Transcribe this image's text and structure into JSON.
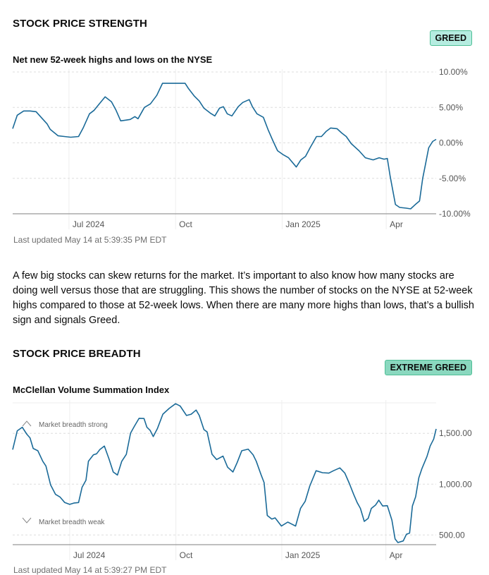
{
  "sections": [
    {
      "title": "STOCK PRICE STRENGTH",
      "badge": "GREED",
      "badge_color": "#b5ece0",
      "subtitle": "Net new 52-week highs and lows on the NYSE",
      "last_updated": "Last updated May 14 at 5:39:35 PM EDT"
    },
    {
      "title": "STOCK PRICE BREADTH",
      "badge": "EXTREME GREED",
      "badge_color": "#8ad8bf",
      "subtitle": "McClellan Volume Summation Index",
      "last_updated": "Last updated May 14 at 5:39:27 PM EDT",
      "annotations": {
        "strong": "Market breadth strong",
        "weak": "Market breadth weak"
      }
    }
  ],
  "description": "A few big stocks can skew returns for the market. It’s important to also know how many stocks are doing well versus those that are struggling. This shows the number of stocks on the NYSE at 52-week highs compared to those at 52-week lows. When there are many more highs than lows, that’s a bullish sign and signals Greed.",
  "chart_data": [
    {
      "type": "line",
      "title": "Net new 52-week highs and lows on the NYSE",
      "x_unit": "months since mid-May 2024",
      "xlim": [
        0,
        11.96
      ],
      "ylim": [
        -10,
        10
      ],
      "y_ticks": [
        10,
        5,
        0,
        -5,
        -10
      ],
      "y_tick_labels": [
        "10.00%",
        "5.00%",
        "0.00%",
        "-5.00%",
        "-10.00%"
      ],
      "x_ticks": [
        1.59,
        4.6,
        7.61,
        10.55
      ],
      "x_tick_labels": [
        "Jul 2024",
        "Oct",
        "Jan 2025",
        "Apr"
      ],
      "line_color": "#1a6a98",
      "points": [
        [
          0,
          2.0
        ],
        [
          0.13,
          3.9
        ],
        [
          0.31,
          4.5
        ],
        [
          0.49,
          4.5
        ],
        [
          0.66,
          4.4
        ],
        [
          0.84,
          3.4
        ],
        [
          0.97,
          2.7
        ],
        [
          1.06,
          1.9
        ],
        [
          1.28,
          1.0
        ],
        [
          1.46,
          0.9
        ],
        [
          1.64,
          0.8
        ],
        [
          1.86,
          0.9
        ],
        [
          1.99,
          2.1
        ],
        [
          2.17,
          4.1
        ],
        [
          2.3,
          4.6
        ],
        [
          2.43,
          5.4
        ],
        [
          2.61,
          6.5
        ],
        [
          2.79,
          5.8
        ],
        [
          2.92,
          4.6
        ],
        [
          3.05,
          3.1
        ],
        [
          3.19,
          3.2
        ],
        [
          3.32,
          3.3
        ],
        [
          3.45,
          3.7
        ],
        [
          3.54,
          3.4
        ],
        [
          3.72,
          5.0
        ],
        [
          3.89,
          5.5
        ],
        [
          4.07,
          6.7
        ],
        [
          4.23,
          8.4
        ],
        [
          4.42,
          8.4
        ],
        [
          4.6,
          8.4
        ],
        [
          4.87,
          8.4
        ],
        [
          4.96,
          7.7
        ],
        [
          5.13,
          6.6
        ],
        [
          5.27,
          5.9
        ],
        [
          5.4,
          4.9
        ],
        [
          5.58,
          4.2
        ],
        [
          5.71,
          3.8
        ],
        [
          5.84,
          4.9
        ],
        [
          5.95,
          5.1
        ],
        [
          6.06,
          4.1
        ],
        [
          6.19,
          3.8
        ],
        [
          6.37,
          5.1
        ],
        [
          6.5,
          5.7
        ],
        [
          6.68,
          6.1
        ],
        [
          6.77,
          5.1
        ],
        [
          6.9,
          4.1
        ],
        [
          7.08,
          3.6
        ],
        [
          7.21,
          1.9
        ],
        [
          7.35,
          0.3
        ],
        [
          7.48,
          -1.1
        ],
        [
          7.65,
          -1.7
        ],
        [
          7.79,
          -2.1
        ],
        [
          8.01,
          -3.4
        ],
        [
          8.14,
          -2.4
        ],
        [
          8.27,
          -1.9
        ],
        [
          8.41,
          -0.6
        ],
        [
          8.58,
          0.9
        ],
        [
          8.72,
          0.9
        ],
        [
          8.85,
          1.6
        ],
        [
          8.98,
          2.1
        ],
        [
          9.16,
          2.0
        ],
        [
          9.29,
          1.4
        ],
        [
          9.42,
          0.9
        ],
        [
          9.56,
          -0.1
        ],
        [
          9.78,
          -1.1
        ],
        [
          9.96,
          -2.1
        ],
        [
          10.18,
          -2.4
        ],
        [
          10.35,
          -2.1
        ],
        [
          10.49,
          -2.3
        ],
        [
          10.58,
          -2.2
        ],
        [
          10.66,
          -4.7
        ],
        [
          10.81,
          -8.7
        ],
        [
          10.93,
          -9.1
        ],
        [
          11.11,
          -9.2
        ],
        [
          11.24,
          -9.3
        ],
        [
          11.37,
          -8.7
        ],
        [
          11.49,
          -8.2
        ],
        [
          11.58,
          -5.0
        ],
        [
          11.66,
          -3.0
        ],
        [
          11.75,
          -0.7
        ],
        [
          11.86,
          0.2
        ],
        [
          11.96,
          0.5
        ]
      ]
    },
    {
      "type": "line",
      "title": "McClellan Volume Summation Index",
      "x_unit": "months since mid-May 2024",
      "xlim": [
        0,
        11.96
      ],
      "ylim": [
        405,
        1800
      ],
      "y_ticks": [
        1500,
        1000,
        500
      ],
      "y_tick_labels": [
        "1,500.00",
        "1,000.00",
        "500.00"
      ],
      "x_ticks": [
        1.61,
        4.61,
        7.6,
        10.54
      ],
      "x_tick_labels": [
        "Jul 2024",
        "Oct",
        "Jan 2025",
        "Apr"
      ],
      "line_color": "#1a6a98",
      "points": [
        [
          0,
          1340
        ],
        [
          0.13,
          1525
        ],
        [
          0.27,
          1560
        ],
        [
          0.4,
          1491
        ],
        [
          0.49,
          1456
        ],
        [
          0.58,
          1352
        ],
        [
          0.71,
          1329
        ],
        [
          0.85,
          1225
        ],
        [
          0.94,
          1178
        ],
        [
          1.07,
          993
        ],
        [
          1.21,
          900
        ],
        [
          1.34,
          873
        ],
        [
          1.47,
          819
        ],
        [
          1.61,
          801
        ],
        [
          1.74,
          815
        ],
        [
          1.86,
          819
        ],
        [
          1.96,
          970
        ],
        [
          2.07,
          1039
        ],
        [
          2.14,
          1225
        ],
        [
          2.28,
          1289
        ],
        [
          2.37,
          1299
        ],
        [
          2.46,
          1340
        ],
        [
          2.59,
          1375
        ],
        [
          2.72,
          1248
        ],
        [
          2.84,
          1120
        ],
        [
          2.96,
          1090
        ],
        [
          3.08,
          1225
        ],
        [
          3.21,
          1294
        ],
        [
          3.33,
          1502
        ],
        [
          3.44,
          1572
        ],
        [
          3.57,
          1648
        ],
        [
          3.71,
          1646
        ],
        [
          3.79,
          1560
        ],
        [
          3.88,
          1530
        ],
        [
          3.97,
          1468
        ],
        [
          4.09,
          1549
        ],
        [
          4.24,
          1688
        ],
        [
          4.42,
          1745
        ],
        [
          4.6,
          1792
        ],
        [
          4.73,
          1769
        ],
        [
          4.91,
          1676
        ],
        [
          5.04,
          1688
        ],
        [
          5.18,
          1729
        ],
        [
          5.27,
          1676
        ],
        [
          5.4,
          1537
        ],
        [
          5.49,
          1514
        ],
        [
          5.63,
          1294
        ],
        [
          5.76,
          1243
        ],
        [
          5.94,
          1276
        ],
        [
          6.07,
          1167
        ],
        [
          6.22,
          1120
        ],
        [
          6.34,
          1213
        ],
        [
          6.47,
          1329
        ],
        [
          6.65,
          1345
        ],
        [
          6.79,
          1289
        ],
        [
          6.88,
          1225
        ],
        [
          7.01,
          1097
        ],
        [
          7.1,
          1016
        ],
        [
          7.19,
          692
        ],
        [
          7.32,
          657
        ],
        [
          7.41,
          669
        ],
        [
          7.59,
          588
        ],
        [
          7.77,
          627
        ],
        [
          7.86,
          611
        ],
        [
          7.99,
          588
        ],
        [
          8.13,
          762
        ],
        [
          8.26,
          831
        ],
        [
          8.39,
          981
        ],
        [
          8.57,
          1132
        ],
        [
          8.75,
          1113
        ],
        [
          8.93,
          1109
        ],
        [
          9.06,
          1132
        ],
        [
          9.24,
          1160
        ],
        [
          9.38,
          1109
        ],
        [
          9.51,
          1005
        ],
        [
          9.63,
          900
        ],
        [
          9.73,
          819
        ],
        [
          9.82,
          762
        ],
        [
          9.93,
          634
        ],
        [
          10.04,
          664
        ],
        [
          10.13,
          762
        ],
        [
          10.25,
          796
        ],
        [
          10.34,
          843
        ],
        [
          10.45,
          785
        ],
        [
          10.58,
          789
        ],
        [
          10.71,
          646
        ],
        [
          10.8,
          461
        ],
        [
          10.88,
          426
        ],
        [
          11.03,
          442
        ],
        [
          11.12,
          507
        ],
        [
          11.21,
          519
        ],
        [
          11.29,
          785
        ],
        [
          11.38,
          877
        ],
        [
          11.47,
          1063
        ],
        [
          11.56,
          1155
        ],
        [
          11.7,
          1271
        ],
        [
          11.79,
          1375
        ],
        [
          11.89,
          1444
        ],
        [
          11.96,
          1544
        ]
      ]
    }
  ]
}
